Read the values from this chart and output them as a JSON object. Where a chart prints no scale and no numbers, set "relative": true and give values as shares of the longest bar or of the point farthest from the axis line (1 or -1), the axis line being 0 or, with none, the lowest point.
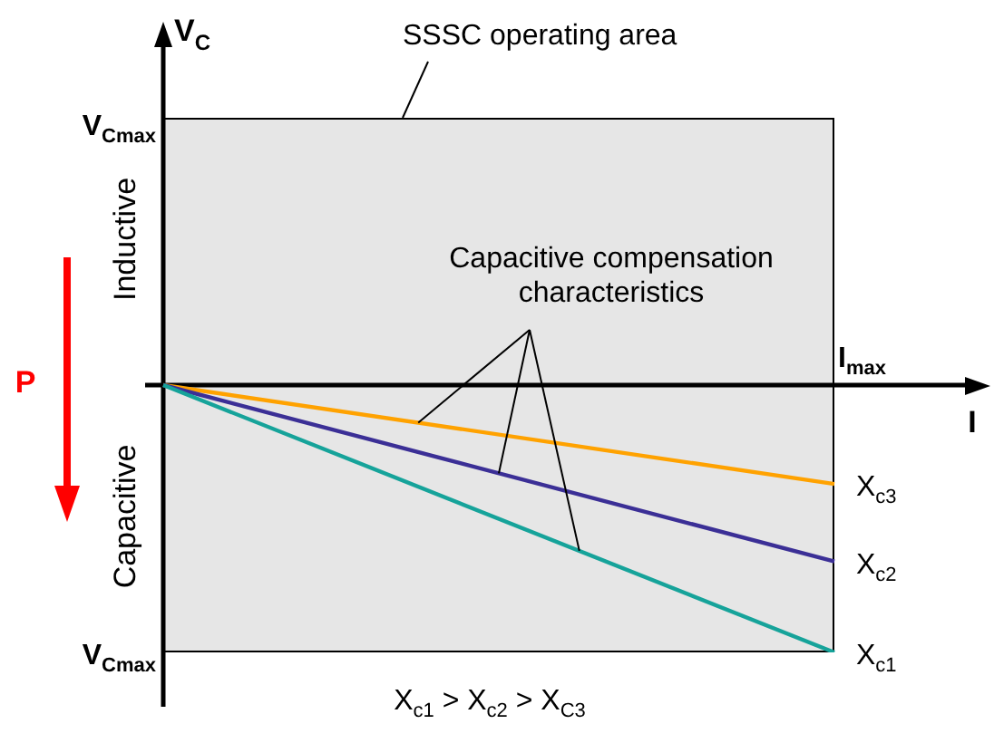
{
  "chart_data": {
    "type": "line",
    "categories": [
      null,
      null
    ],
    "relative": true,
    "series": [
      {
        "name": "X$_{c1}$",
        "color": "#16a39a",
        "values": [
          0,
          -1
        ]
      },
      {
        "name": "X$_{c2}$",
        "color": "#3b2f96",
        "values": [
          0,
          -0.66
        ]
      },
      {
        "name": "X$_{c3}$",
        "color": "#ffa200",
        "values": [
          0,
          -0.37
        ]
      }
    ],
    "annotations": [
      "Inductive",
      "Capacitive",
      "P",
      "Capacitive compensation characteristics",
      "X$_{c1}$ > X$_{c2}$ > X$_{C3}$",
      "V$_{Cmax}$",
      "V$_{Cmax}$",
      "I$_{max}$",
      "SSSC operating area",
      "V$_{C}$",
      "I"
    ],
    "legend": false,
    "marker": "none",
    "line_style": "solid"
  }
}
